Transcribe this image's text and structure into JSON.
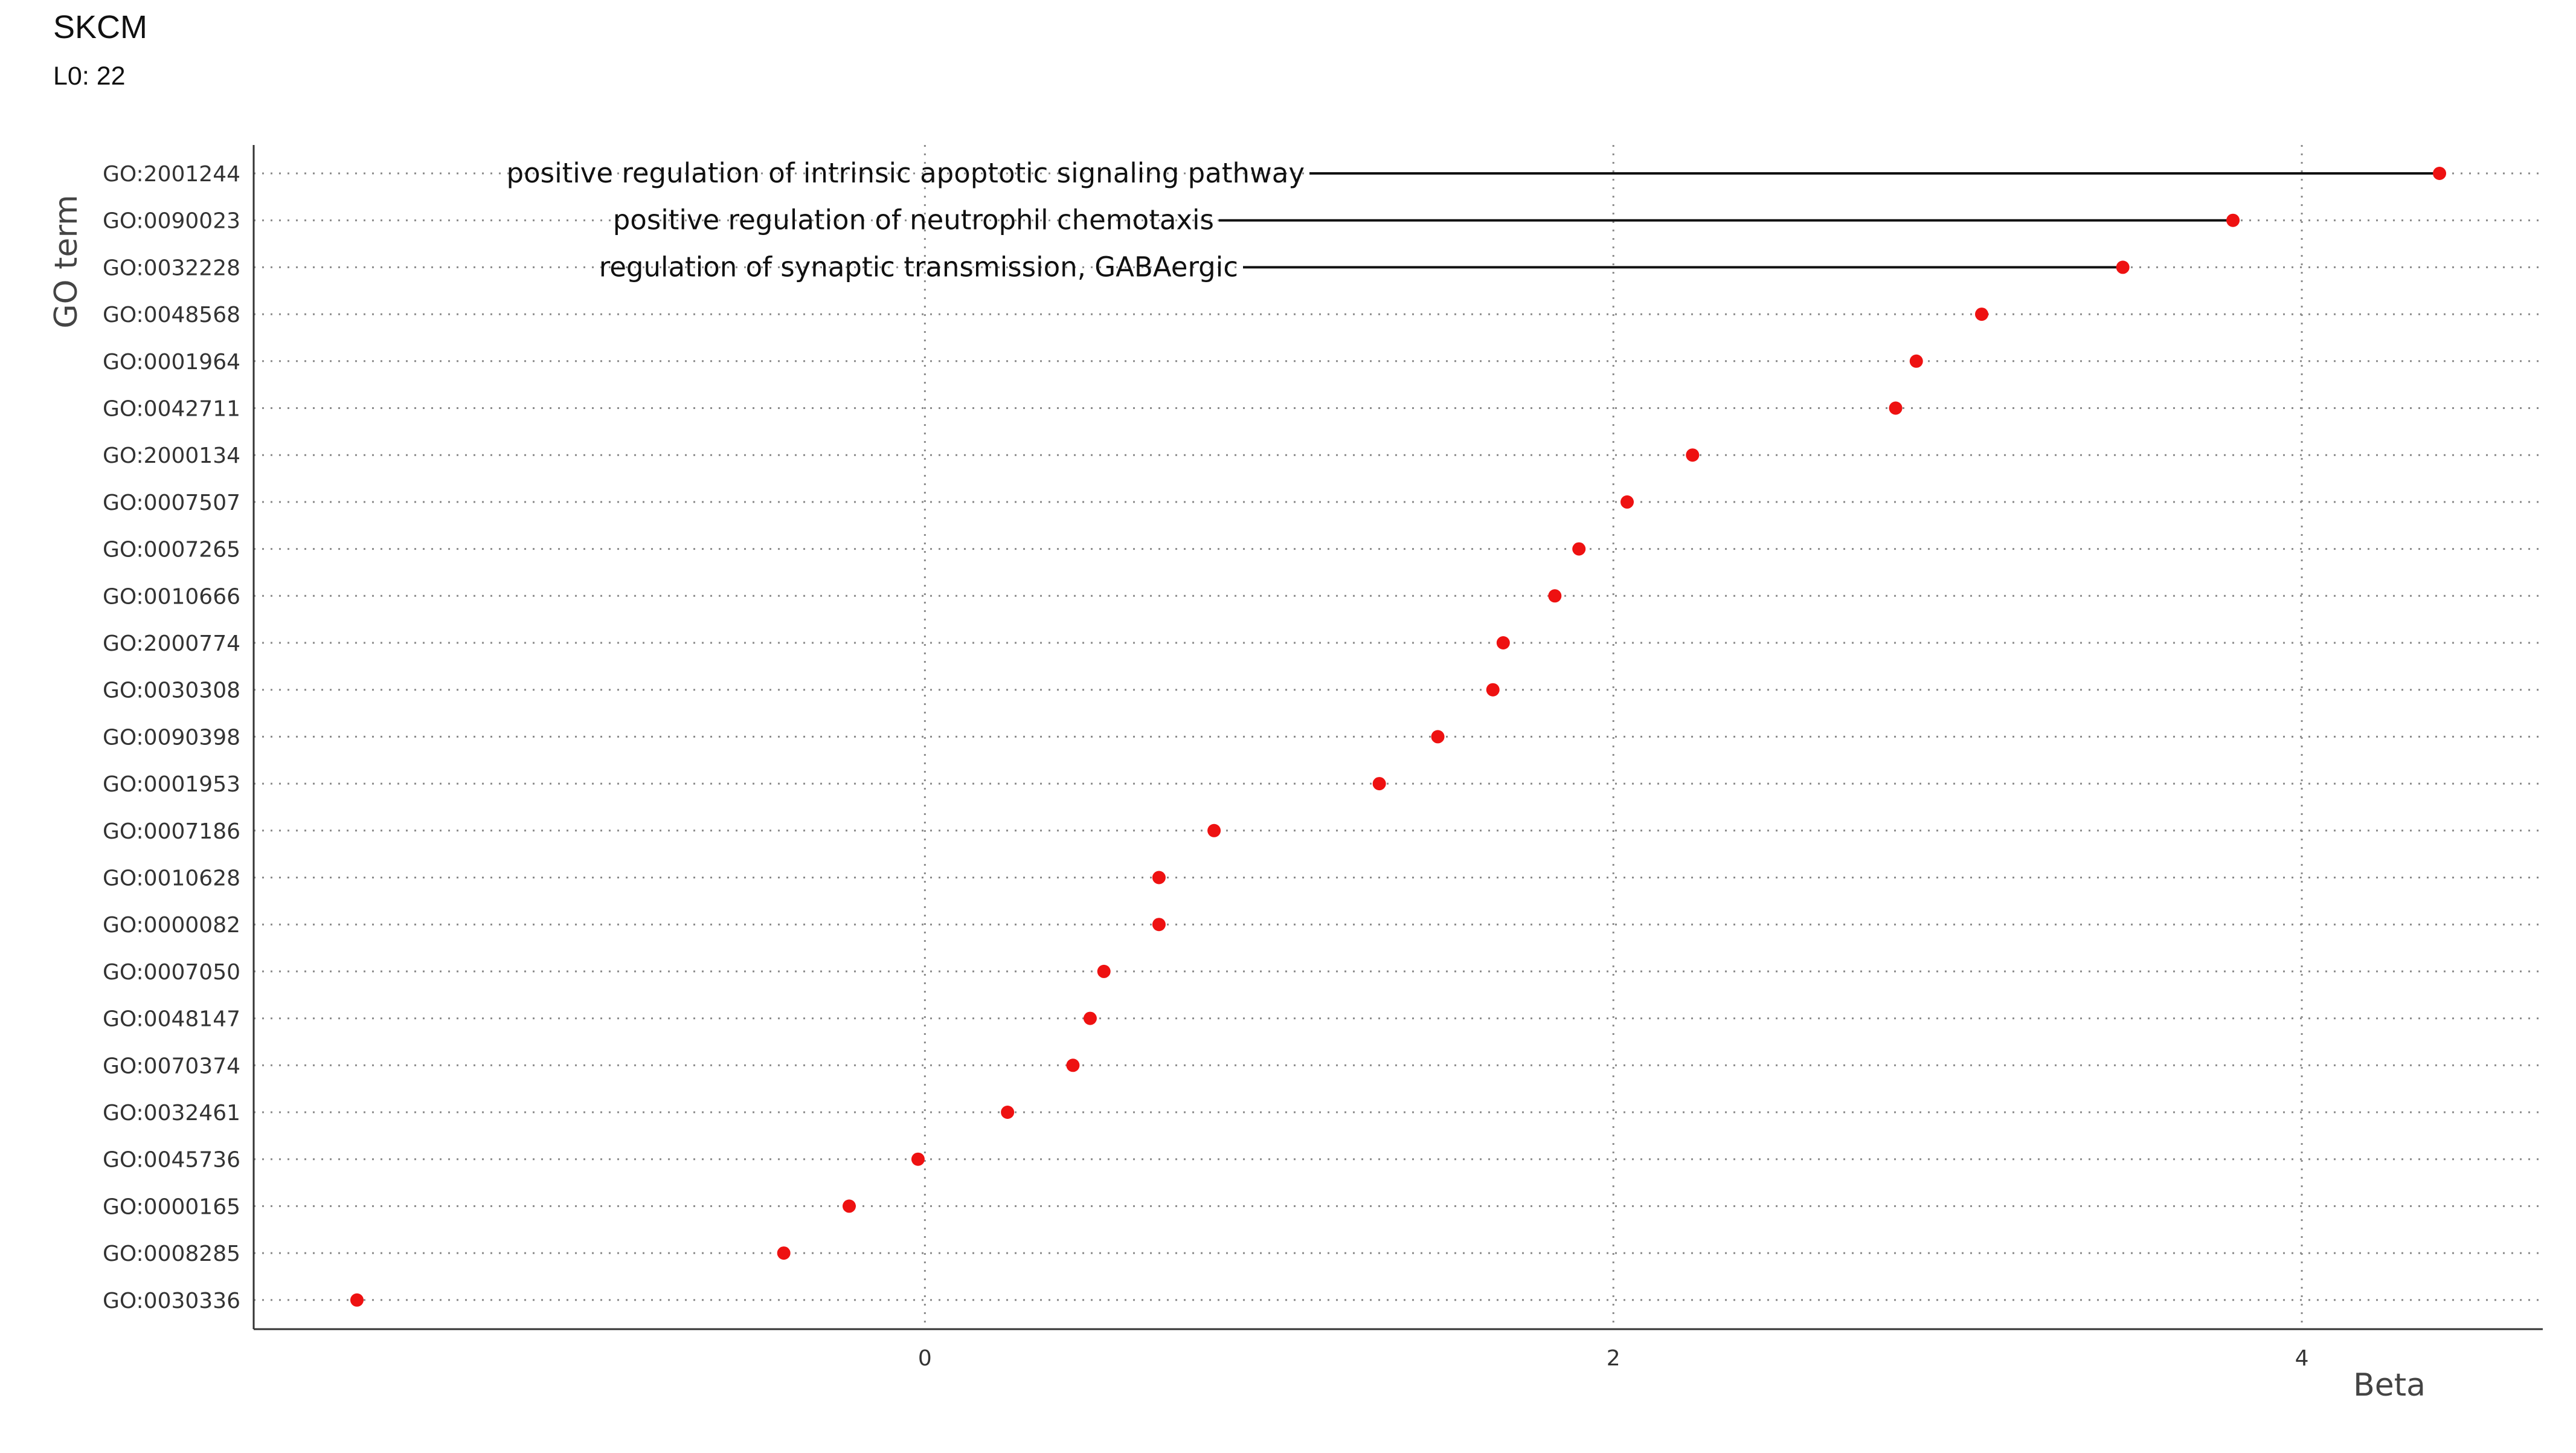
{
  "title": "SKCM",
  "subtitle": "L0: 22",
  "chart_data": {
    "type": "scatter",
    "title": "SKCM",
    "subtitle": "L0: 22",
    "xlabel": "Beta",
    "ylabel": "GO term",
    "xlim": [
      -1.95,
      4.7
    ],
    "x_ticks": [
      0,
      2,
      4
    ],
    "grid": "dotted, major x and y",
    "marker_color": "#ee1111",
    "categories": [
      "GO:2001244",
      "GO:0090023",
      "GO:0032228",
      "GO:0048568",
      "GO:0001964",
      "GO:0042711",
      "GO:2000134",
      "GO:0007507",
      "GO:0007265",
      "GO:0010666",
      "GO:2000774",
      "GO:0030308",
      "GO:0090398",
      "GO:0001953",
      "GO:0007186",
      "GO:0010628",
      "GO:0000082",
      "GO:0007050",
      "GO:0048147",
      "GO:0070374",
      "GO:0032461",
      "GO:0045736",
      "GO:0000165",
      "GO:0008285",
      "GO:0030336"
    ],
    "values": [
      4.4,
      3.8,
      3.48,
      3.07,
      2.88,
      2.82,
      2.23,
      2.04,
      1.9,
      1.83,
      1.68,
      1.65,
      1.49,
      1.32,
      0.84,
      0.68,
      0.68,
      0.52,
      0.48,
      0.43,
      0.24,
      -0.02,
      -0.22,
      -0.41,
      -1.65
    ],
    "annotations": [
      {
        "term": "GO:2001244",
        "label": "positive regulation of intrinsic apoptotic signaling pathway"
      },
      {
        "term": "GO:0090023",
        "label": "positive regulation of neutrophil chemotaxis"
      },
      {
        "term": "GO:0032228",
        "label": "regulation of synaptic transmission, GABAergic"
      }
    ]
  }
}
